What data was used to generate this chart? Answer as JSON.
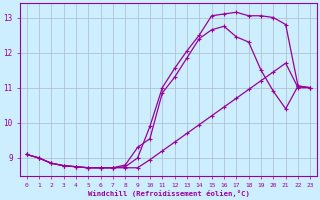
{
  "bg_color": "#cceeff",
  "line_color": "#990099",
  "grid_color": "#aabbcc",
  "xlabel": "Windchill (Refroidissement éolien,°C)",
  "xlim": [
    -0.5,
    23.5
  ],
  "ylim": [
    8.5,
    13.4
  ],
  "xticks": [
    0,
    1,
    2,
    3,
    4,
    5,
    6,
    7,
    8,
    9,
    10,
    11,
    12,
    13,
    14,
    15,
    16,
    17,
    18,
    19,
    20,
    21,
    22,
    23
  ],
  "yticks": [
    9,
    10,
    11,
    12,
    13
  ],
  "curve1_x": [
    0,
    1,
    2,
    3,
    4,
    5,
    6,
    7,
    8,
    9,
    10,
    11,
    12,
    13,
    14,
    15,
    16,
    17,
    18,
    19,
    20,
    21,
    22,
    23
  ],
  "curve1_y": [
    9.1,
    9.0,
    8.85,
    8.78,
    8.75,
    8.72,
    8.72,
    8.72,
    8.75,
    9.0,
    9.9,
    11.0,
    11.55,
    12.05,
    12.5,
    13.05,
    13.1,
    13.15,
    13.05,
    13.05,
    13.0,
    12.8,
    11.05,
    11.0
  ],
  "curve2_x": [
    0,
    1,
    2,
    3,
    4,
    5,
    6,
    7,
    8,
    9,
    10,
    11,
    12,
    13,
    14,
    15,
    16,
    17,
    18,
    19,
    20,
    21,
    22,
    23
  ],
  "curve2_y": [
    9.1,
    9.0,
    8.85,
    8.78,
    8.75,
    8.72,
    8.72,
    8.72,
    8.8,
    9.3,
    9.55,
    10.85,
    11.3,
    11.85,
    12.4,
    12.65,
    12.75,
    12.45,
    12.3,
    11.5,
    10.9,
    10.4,
    11.05,
    11.0
  ],
  "curve3_x": [
    0,
    1,
    2,
    3,
    4,
    5,
    6,
    7,
    8,
    9,
    10,
    11,
    12,
    13,
    14,
    15,
    16,
    17,
    18,
    19,
    20,
    21,
    22,
    23
  ],
  "curve3_y": [
    9.1,
    9.0,
    8.85,
    8.78,
    8.75,
    8.72,
    8.72,
    8.72,
    8.72,
    8.72,
    8.95,
    9.2,
    9.45,
    9.7,
    9.95,
    10.2,
    10.45,
    10.7,
    10.95,
    11.2,
    11.45,
    11.7,
    11.0,
    11.0
  ]
}
